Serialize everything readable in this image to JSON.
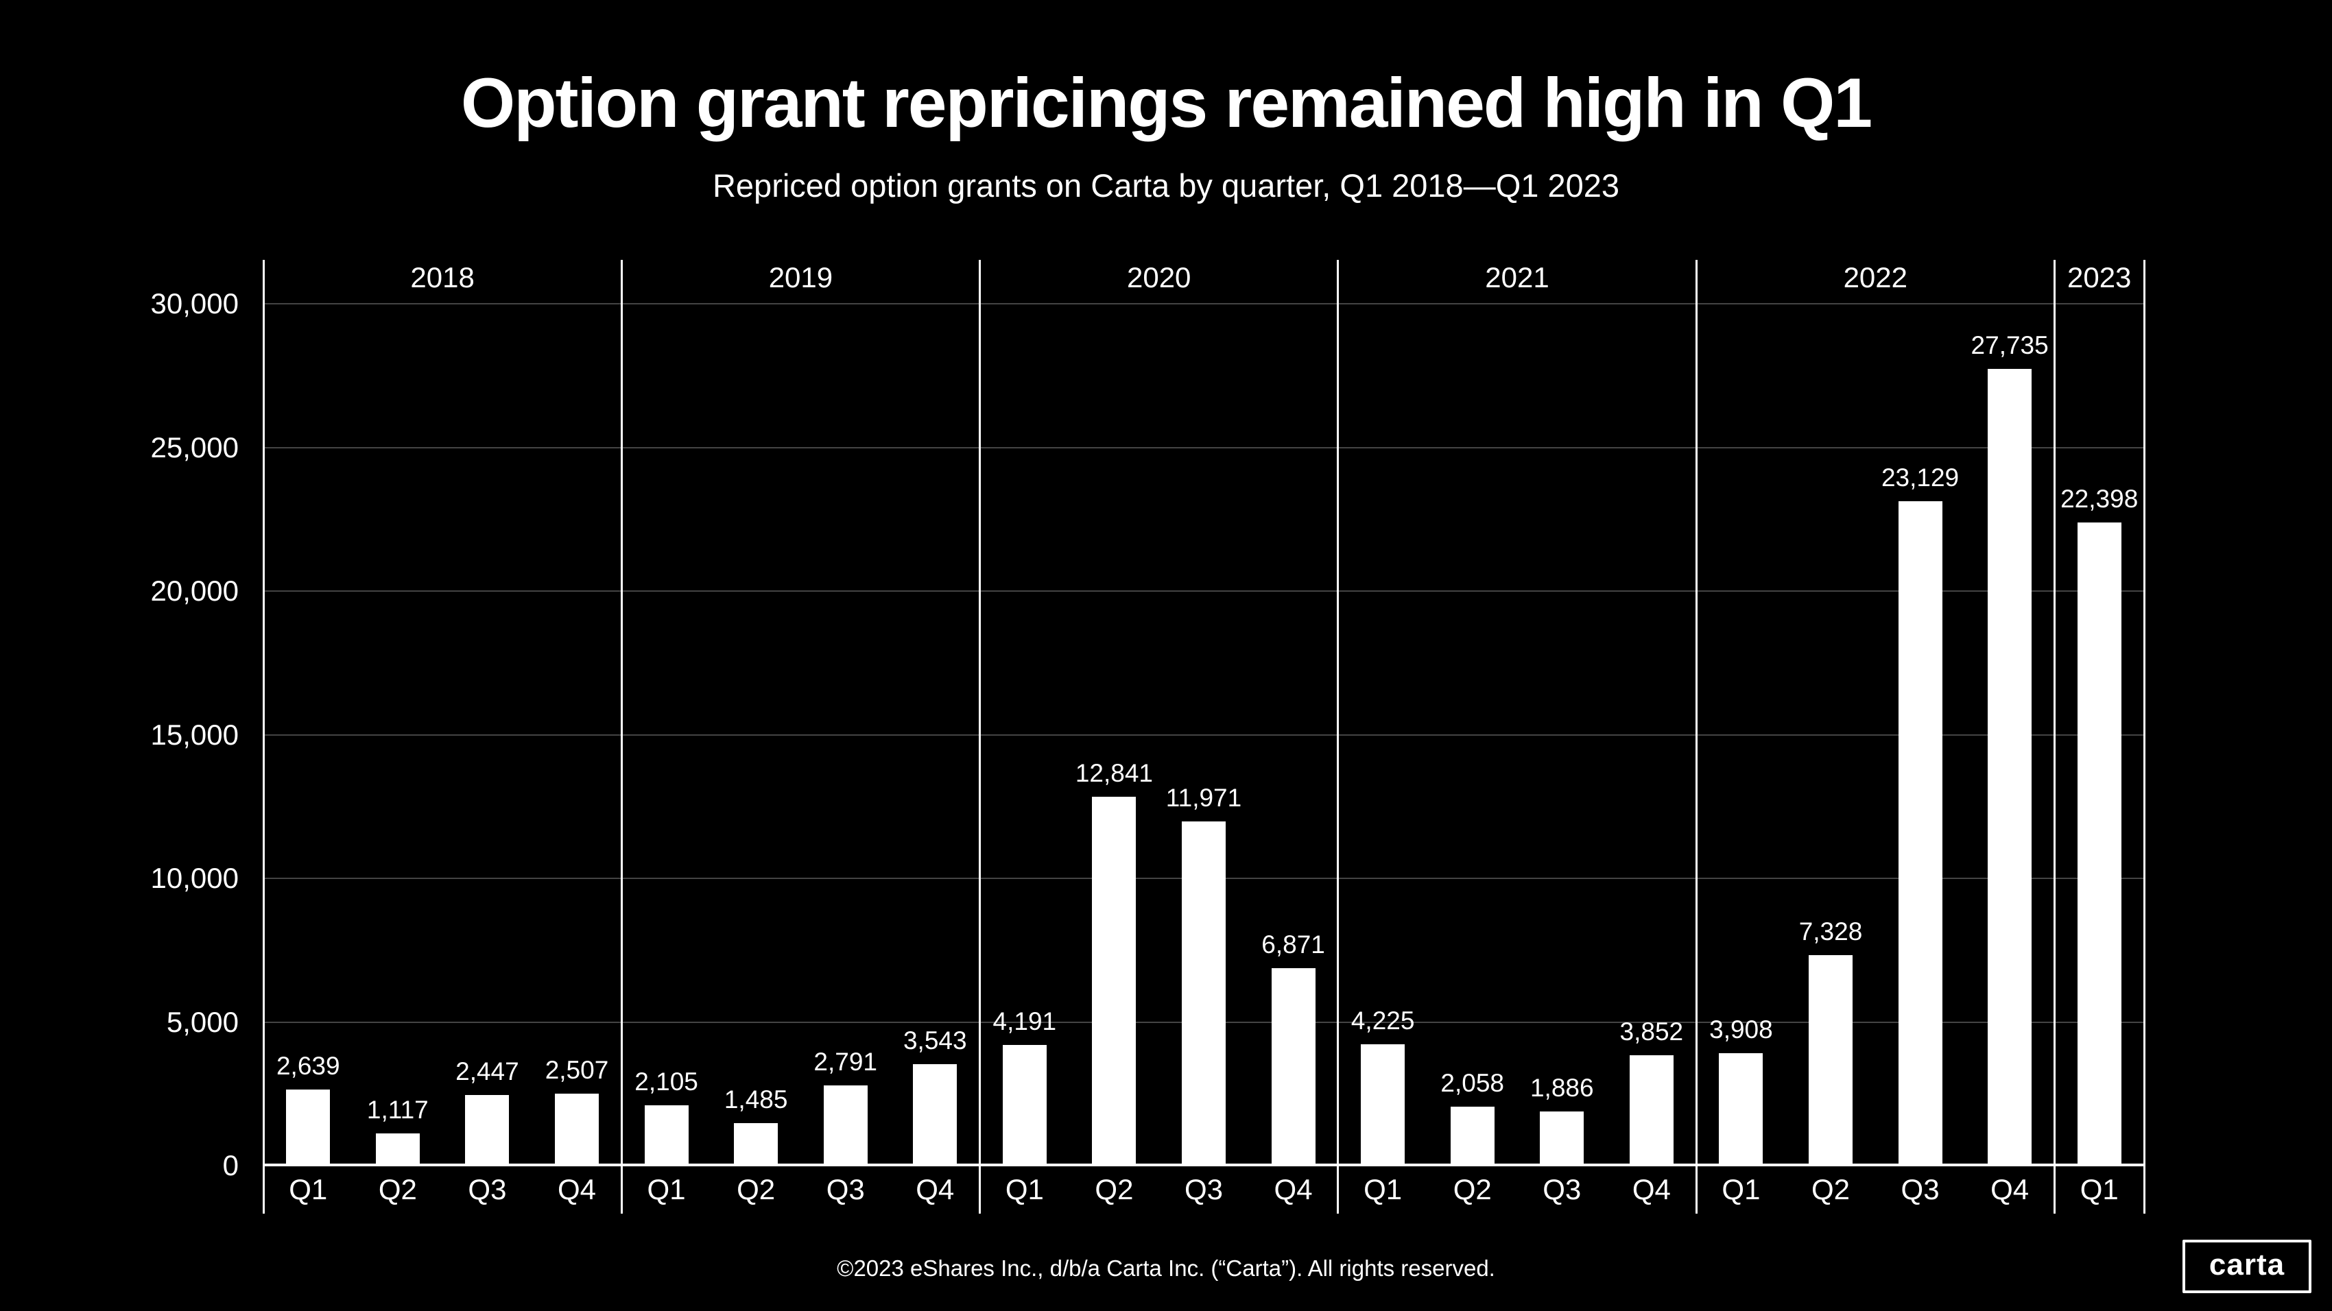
{
  "page": {
    "background": "#000000",
    "text_color": "#ffffff"
  },
  "header": {
    "title": "Option grant repricings remained high in Q1",
    "subtitle": "Repriced option grants on Carta by quarter, Q1 2018—Q1 2023"
  },
  "footer": {
    "copyright": "©2023 eShares Inc., d/b/a Carta Inc. (“Carta”). All rights reserved.",
    "logo_text": "carta"
  },
  "chart_data": {
    "type": "bar",
    "title": "Option grant repricings remained high in Q1",
    "subtitle": "Repriced option grants on Carta by quarter, Q1 2018—Q1 2023",
    "bar_color": "#ffffff",
    "gridline_color": "#444444",
    "axis_color": "#ffffff",
    "ylim": [
      0,
      30000
    ],
    "grid": true,
    "legend_position": "none",
    "yticks": [
      {
        "value": 0,
        "label": "0"
      },
      {
        "value": 5000,
        "label": "5,000"
      },
      {
        "value": 10000,
        "label": "10,000"
      },
      {
        "value": 15000,
        "label": "15,000"
      },
      {
        "value": 20000,
        "label": "20,000"
      },
      {
        "value": 25000,
        "label": "25,000"
      },
      {
        "value": 30000,
        "label": "30,000"
      }
    ],
    "groups": [
      {
        "year": "2018",
        "quarters": [
          "Q1",
          "Q2",
          "Q3",
          "Q4"
        ],
        "values": [
          2639,
          1117,
          2447,
          2507
        ],
        "labels": [
          "2,639",
          "1,117",
          "2,447",
          "2,507"
        ]
      },
      {
        "year": "2019",
        "quarters": [
          "Q1",
          "Q2",
          "Q3",
          "Q4"
        ],
        "values": [
          2105,
          1485,
          2791,
          3543
        ],
        "labels": [
          "2,105",
          "1,485",
          "2,791",
          "3,543"
        ]
      },
      {
        "year": "2020",
        "quarters": [
          "Q1",
          "Q2",
          "Q3",
          "Q4"
        ],
        "values": [
          4191,
          12841,
          11971,
          6871
        ],
        "labels": [
          "4,191",
          "12,841",
          "11,971",
          "6,871"
        ]
      },
      {
        "year": "2021",
        "quarters": [
          "Q1",
          "Q2",
          "Q3",
          "Q4"
        ],
        "values": [
          4225,
          2058,
          1886,
          3852
        ],
        "labels": [
          "4,225",
          "2,058",
          "1,886",
          "3,852"
        ]
      },
      {
        "year": "2022",
        "quarters": [
          "Q1",
          "Q2",
          "Q3",
          "Q4"
        ],
        "values": [
          3908,
          7328,
          23129,
          27735
        ],
        "labels": [
          "3,908",
          "7,328",
          "23,129",
          "27,735"
        ]
      },
      {
        "year": "2023",
        "quarters": [
          "Q1"
        ],
        "values": [
          22398
        ],
        "labels": [
          "22,398"
        ]
      }
    ]
  }
}
